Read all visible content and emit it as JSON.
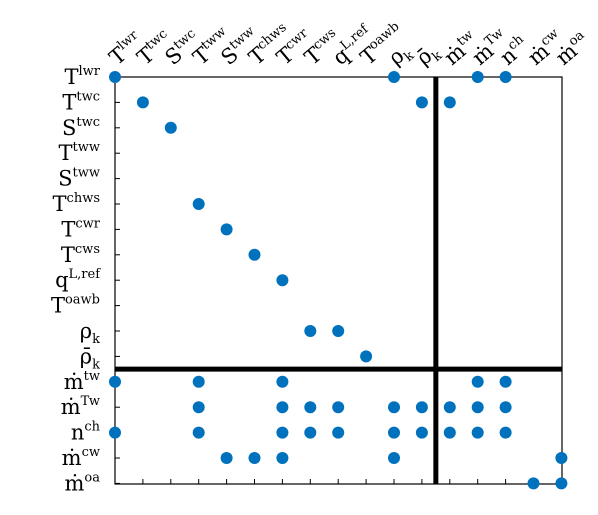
{
  "chart_data": {
    "type": "scatter",
    "title": "",
    "xlabel": "",
    "ylabel": "",
    "columns": [
      {
        "base": "T",
        "sup": "lwr",
        "sub": ""
      },
      {
        "base": "T",
        "sup": "twc",
        "sub": ""
      },
      {
        "base": "S",
        "sup": "twc",
        "sub": ""
      },
      {
        "base": "T",
        "sup": "tww",
        "sub": ""
      },
      {
        "base": "S",
        "sup": "tww",
        "sub": ""
      },
      {
        "base": "T",
        "sup": "chws",
        "sub": ""
      },
      {
        "base": "T",
        "sup": "cwr",
        "sub": ""
      },
      {
        "base": "T",
        "sup": "cws",
        "sub": ""
      },
      {
        "base": "q",
        "sup": "L,ref",
        "sub": ""
      },
      {
        "base": "T",
        "sup": "oawb",
        "sub": ""
      },
      {
        "base": "ρ",
        "sup": "",
        "sub": "k"
      },
      {
        "base": "ρ̄",
        "sup": "",
        "sub": "k"
      },
      {
        "base": "ṁ",
        "sup": "tw",
        "sub": ""
      },
      {
        "base": "ṁ",
        "sup": "Tw",
        "sub": ""
      },
      {
        "base": "n",
        "sup": "ch",
        "sub": ""
      },
      {
        "base": "ṁ",
        "sup": "cw",
        "sub": ""
      },
      {
        "base": "ṁ",
        "sup": "oa",
        "sub": ""
      }
    ],
    "rows": [
      {
        "base": "T",
        "sup": "lwr",
        "sub": ""
      },
      {
        "base": "T",
        "sup": "twc",
        "sub": ""
      },
      {
        "base": "S",
        "sup": "twc",
        "sub": ""
      },
      {
        "base": "T",
        "sup": "tww",
        "sub": ""
      },
      {
        "base": "S",
        "sup": "tww",
        "sub": ""
      },
      {
        "base": "T",
        "sup": "chws",
        "sub": ""
      },
      {
        "base": "T",
        "sup": "cwr",
        "sub": ""
      },
      {
        "base": "T",
        "sup": "cws",
        "sub": ""
      },
      {
        "base": "q",
        "sup": "L,ref",
        "sub": ""
      },
      {
        "base": "T",
        "sup": "oawb",
        "sub": ""
      },
      {
        "base": "ρ",
        "sup": "",
        "sub": "k"
      },
      {
        "base": "ρ̄",
        "sup": "",
        "sub": "k"
      },
      {
        "base": "ṁ",
        "sup": "tw",
        "sub": ""
      },
      {
        "base": "ṁ",
        "sup": "Tw",
        "sub": ""
      },
      {
        "base": "n",
        "sup": "ch",
        "sub": ""
      },
      {
        "base": "ṁ",
        "sup": "cw",
        "sub": ""
      },
      {
        "base": "ṁ",
        "sup": "oa",
        "sub": ""
      }
    ],
    "points": [
      [
        0,
        0
      ],
      [
        0,
        12
      ],
      [
        0,
        14
      ],
      [
        1,
        1
      ],
      [
        2,
        2
      ],
      [
        3,
        5
      ],
      [
        3,
        12
      ],
      [
        3,
        13
      ],
      [
        3,
        14
      ],
      [
        4,
        6
      ],
      [
        4,
        15
      ],
      [
        5,
        7
      ],
      [
        5,
        15
      ],
      [
        6,
        8
      ],
      [
        6,
        12
      ],
      [
        6,
        13
      ],
      [
        6,
        14
      ],
      [
        6,
        15
      ],
      [
        7,
        10
      ],
      [
        7,
        13
      ],
      [
        7,
        14
      ],
      [
        8,
        10
      ],
      [
        8,
        13
      ],
      [
        8,
        14
      ],
      [
        9,
        11
      ],
      [
        10,
        0
      ],
      [
        10,
        13
      ],
      [
        10,
        14
      ],
      [
        10,
        15
      ],
      [
        11,
        1
      ],
      [
        11,
        13
      ],
      [
        11,
        14
      ],
      [
        12,
        1
      ],
      [
        12,
        13
      ],
      [
        12,
        14
      ],
      [
        13,
        0
      ],
      [
        13,
        12
      ],
      [
        13,
        13
      ],
      [
        13,
        14
      ],
      [
        14,
        0
      ],
      [
        14,
        12
      ],
      [
        14,
        13
      ],
      [
        14,
        14
      ],
      [
        15,
        16
      ],
      [
        16,
        15
      ],
      [
        16,
        16
      ]
    ],
    "points_format": "[column_index, row_index]",
    "partition": {
      "after_column": 11,
      "after_row": 11
    },
    "colors": {
      "marker": "#0072BD",
      "axis": "#000000",
      "partition": "#000000"
    }
  }
}
